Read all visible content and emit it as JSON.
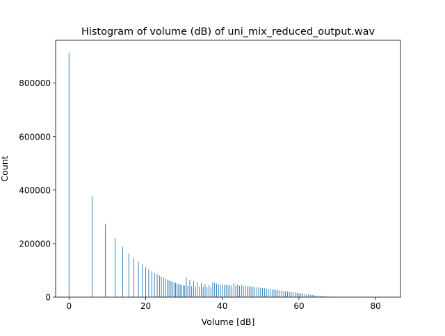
{
  "chart_data": {
    "type": "bar",
    "title": "Histogram of volume (dB) of uni_mix_reduced_output.wav",
    "xlabel": "Volume [dB]",
    "ylabel": "Count",
    "xlim": [
      -3.5,
      86.5
    ],
    "ylim": [
      0,
      960000
    ],
    "xticks": [
      0,
      20,
      40,
      60,
      80
    ],
    "yticks": [
      0,
      200000,
      400000,
      600000,
      800000
    ],
    "xtick_labels": [
      "0",
      "20",
      "40",
      "60",
      "80"
    ],
    "ytick_labels": [
      "0",
      "200000",
      "400000",
      "600000",
      "800000"
    ],
    "bar_color": "#1f77b4",
    "grid": false,
    "bins": [
      [
        0.0,
        914000
      ],
      [
        6.0,
        377000
      ],
      [
        9.5,
        274000
      ],
      [
        12.0,
        220000
      ],
      [
        14.0,
        188000
      ],
      [
        15.6,
        163000
      ],
      [
        16.9,
        146000
      ],
      [
        18.1,
        132000
      ],
      [
        19.1,
        121000
      ],
      [
        20.0,
        112000
      ],
      [
        20.8,
        104000
      ],
      [
        21.6,
        97000
      ],
      [
        22.3,
        91000
      ],
      [
        23.0,
        86000
      ],
      [
        23.6,
        81000
      ],
      [
        24.1,
        77000
      ],
      [
        24.7,
        73000
      ],
      [
        25.2,
        69000
      ],
      [
        25.7,
        66000
      ],
      [
        26.1,
        63000
      ],
      [
        26.6,
        60000
      ],
      [
        27.0,
        57000
      ],
      [
        27.4,
        55000
      ],
      [
        27.8,
        53000
      ],
      [
        28.2,
        51000
      ],
      [
        28.6,
        49000
      ],
      [
        29.0,
        47000
      ],
      [
        29.4,
        45000
      ],
      [
        29.8,
        44000
      ],
      [
        30.2,
        43000
      ],
      [
        30.6,
        73000
      ],
      [
        31.0,
        42000
      ],
      [
        31.5,
        64000
      ],
      [
        32.0,
        41000
      ],
      [
        32.5,
        59000
      ],
      [
        33.0,
        40000
      ],
      [
        33.5,
        56000
      ],
      [
        34.0,
        39000
      ],
      [
        34.5,
        52000
      ],
      [
        35.0,
        38000
      ],
      [
        35.5,
        49000
      ],
      [
        36.0,
        37000
      ],
      [
        36.5,
        45000
      ],
      [
        37.0,
        36500
      ],
      [
        37.5,
        55000
      ],
      [
        38.0,
        52000
      ],
      [
        38.5,
        50000
      ],
      [
        39.0,
        48000
      ],
      [
        39.5,
        47000
      ],
      [
        40.0,
        46000
      ],
      [
        40.5,
        45000
      ],
      [
        41.0,
        47000
      ],
      [
        41.5,
        44000
      ],
      [
        42.0,
        46000
      ],
      [
        42.5,
        43000
      ],
      [
        43.0,
        51000
      ],
      [
        43.5,
        43000
      ],
      [
        44.0,
        47000
      ],
      [
        44.5,
        42000
      ],
      [
        45.0,
        46000
      ],
      [
        45.5,
        41000
      ],
      [
        46.0,
        43000
      ],
      [
        46.5,
        40000
      ],
      [
        47.0,
        41000
      ],
      [
        47.5,
        39000
      ],
      [
        48.0,
        39000
      ],
      [
        48.5,
        37500
      ],
      [
        49.0,
        37000
      ],
      [
        49.5,
        36000
      ],
      [
        50.0,
        35000
      ],
      [
        50.5,
        34000
      ],
      [
        51.0,
        33000
      ],
      [
        51.5,
        32000
      ],
      [
        52.0,
        31000
      ],
      [
        52.5,
        30000
      ],
      [
        53.0,
        29000
      ],
      [
        53.5,
        28000
      ],
      [
        54.0,
        27000
      ],
      [
        54.5,
        26000
      ],
      [
        55.0,
        25000
      ],
      [
        55.5,
        24000
      ],
      [
        56.0,
        23000
      ],
      [
        56.5,
        22000
      ],
      [
        57.0,
        21000
      ],
      [
        57.5,
        20000
      ],
      [
        58.0,
        19000
      ],
      [
        58.5,
        18000
      ],
      [
        59.0,
        17000
      ],
      [
        59.5,
        16000
      ],
      [
        60.0,
        15000
      ],
      [
        60.5,
        14000
      ],
      [
        61.0,
        13000
      ],
      [
        61.5,
        12000
      ],
      [
        62.0,
        11000
      ],
      [
        62.5,
        10000
      ],
      [
        63.0,
        9000
      ],
      [
        63.5,
        8000
      ],
      [
        64.0,
        7000
      ],
      [
        64.5,
        6200
      ],
      [
        65.0,
        5500
      ],
      [
        65.5,
        4800
      ],
      [
        66.0,
        4100
      ],
      [
        66.5,
        3500
      ],
      [
        67.0,
        2900
      ],
      [
        67.5,
        2400
      ],
      [
        68.0,
        1900
      ],
      [
        68.5,
        1500
      ],
      [
        69.0,
        1100
      ],
      [
        69.5,
        800
      ],
      [
        70.0,
        500
      ],
      [
        71.0,
        300
      ],
      [
        72.0,
        200
      ],
      [
        74.0,
        100
      ],
      [
        76.0,
        60
      ],
      [
        78.0,
        40
      ],
      [
        80.0,
        20
      ],
      [
        82.0,
        10
      ]
    ]
  }
}
